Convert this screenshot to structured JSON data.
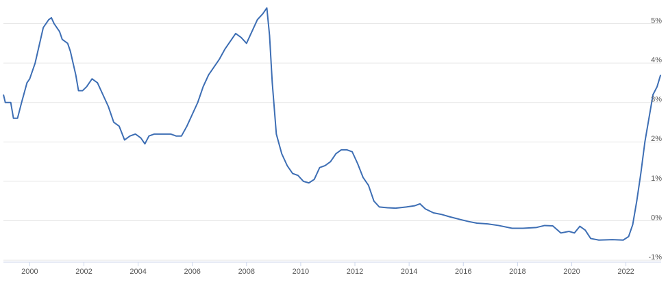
{
  "chart_data": {
    "type": "line",
    "color": "#3d6eb4",
    "grid": true,
    "xlim": [
      1999.03,
      2023.3
    ],
    "xticks": [
      2000,
      2002,
      2004,
      2006,
      2008,
      2010,
      2012,
      2014,
      2016,
      2018,
      2020,
      2022
    ],
    "ylim": [
      -1.05,
      5.6
    ],
    "yticks": [
      {
        "value": -1,
        "label": "-1%"
      },
      {
        "value": 0,
        "label": "0%"
      },
      {
        "value": 1,
        "label": "1%"
      },
      {
        "value": 2,
        "label": "2%"
      },
      {
        "value": 3,
        "label": "3%"
      },
      {
        "value": 4,
        "label": "4%"
      },
      {
        "value": 5,
        "label": "5%"
      }
    ],
    "x": [
      1999.03,
      1999.1,
      1999.3,
      1999.4,
      1999.55,
      1999.7,
      1999.9,
      2000.0,
      2000.2,
      2000.4,
      2000.5,
      2000.7,
      2000.8,
      2000.9,
      2001.1,
      2001.2,
      2001.4,
      2001.5,
      2001.7,
      2001.8,
      2001.95,
      2002.1,
      2002.3,
      2002.5,
      2002.7,
      2002.9,
      2003.1,
      2003.3,
      2003.5,
      2003.7,
      2003.9,
      2004.1,
      2004.25,
      2004.4,
      2004.6,
      2004.8,
      2005.0,
      2005.2,
      2005.4,
      2005.6,
      2005.8,
      2006.0,
      2006.2,
      2006.4,
      2006.6,
      2006.8,
      2007.0,
      2007.2,
      2007.4,
      2007.6,
      2007.8,
      2008.0,
      2008.2,
      2008.4,
      2008.6,
      2008.75,
      2008.85,
      2008.95,
      2009.1,
      2009.3,
      2009.5,
      2009.7,
      2009.9,
      2010.1,
      2010.3,
      2010.5,
      2010.7,
      2010.9,
      2011.1,
      2011.3,
      2011.5,
      2011.7,
      2011.9,
      2012.1,
      2012.3,
      2012.5,
      2012.7,
      2012.9,
      2013.2,
      2013.5,
      2013.9,
      2014.2,
      2014.4,
      2014.6,
      2014.9,
      2015.2,
      2015.5,
      2015.9,
      2016.2,
      2016.5,
      2016.9,
      2017.3,
      2017.8,
      2018.2,
      2018.7,
      2019.0,
      2019.3,
      2019.6,
      2019.9,
      2020.1,
      2020.3,
      2020.5,
      2020.7,
      2021.0,
      2021.5,
      2021.9,
      2022.1,
      2022.25,
      2022.4,
      2022.55,
      2022.7,
      2022.85,
      2023.0,
      2023.15,
      2023.28
    ],
    "values": [
      3.2,
      3.0,
      3.0,
      2.6,
      2.6,
      3.0,
      3.5,
      3.6,
      4.0,
      4.6,
      4.9,
      5.1,
      5.15,
      5.0,
      4.8,
      4.6,
      4.5,
      4.3,
      3.7,
      3.3,
      3.3,
      3.4,
      3.6,
      3.5,
      3.2,
      2.9,
      2.5,
      2.4,
      2.05,
      2.15,
      2.2,
      2.1,
      1.95,
      2.15,
      2.2,
      2.2,
      2.2,
      2.2,
      2.15,
      2.15,
      2.4,
      2.7,
      3.0,
      3.4,
      3.7,
      3.9,
      4.1,
      4.35,
      4.55,
      4.75,
      4.65,
      4.5,
      4.8,
      5.1,
      5.25,
      5.4,
      4.7,
      3.5,
      2.2,
      1.7,
      1.4,
      1.2,
      1.15,
      1.0,
      0.96,
      1.05,
      1.35,
      1.4,
      1.5,
      1.7,
      1.8,
      1.8,
      1.75,
      1.45,
      1.1,
      0.9,
      0.5,
      0.35,
      0.33,
      0.32,
      0.35,
      0.38,
      0.43,
      0.3,
      0.2,
      0.16,
      0.1,
      0.03,
      -0.02,
      -0.06,
      -0.08,
      -0.12,
      -0.19,
      -0.19,
      -0.17,
      -0.12,
      -0.13,
      -0.31,
      -0.27,
      -0.31,
      -0.14,
      -0.24,
      -0.45,
      -0.49,
      -0.48,
      -0.49,
      -0.4,
      -0.1,
      0.5,
      1.2,
      2.0,
      2.6,
      3.2,
      3.4,
      3.7
    ]
  }
}
